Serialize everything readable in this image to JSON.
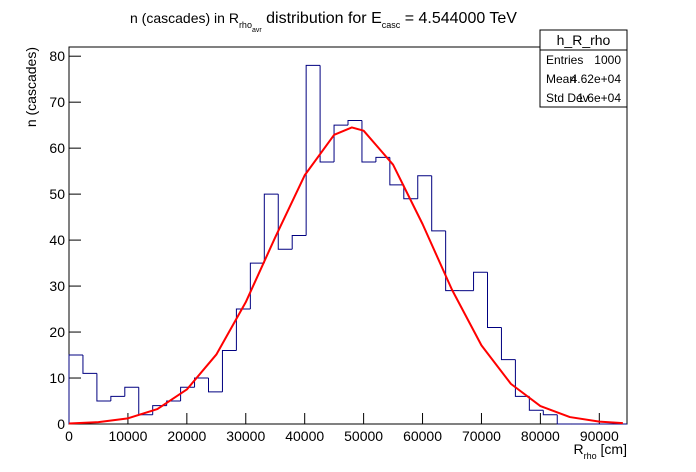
{
  "chart_data": {
    "type": "histogram",
    "title": [
      "n (cascades) in R",
      "rho",
      "avr",
      " distribution for E",
      "casc",
      " = 4.544000 TeV"
    ],
    "x_label": [
      "R",
      "rho",
      " [cm]"
    ],
    "y_label": "n (cascades)",
    "bins": [
      0,
      2367.5,
      4735,
      7102.5,
      9470,
      11837.5,
      14205,
      16572.5,
      18940,
      21307.5,
      23675,
      26042.5,
      28410,
      30777.5,
      33145,
      35512.5,
      37880,
      40247.5,
      42615,
      44982.5,
      47350,
      49717.5,
      52085,
      54452.5,
      56820,
      59187.5,
      61555,
      63922.5,
      66290,
      68657.5,
      71025,
      73392.5,
      75760,
      78127.5,
      80495,
      82862.5,
      85230,
      87597.5,
      89965,
      92332.5,
      94700
    ],
    "values": [
      15,
      11,
      5,
      6,
      8,
      2,
      4,
      5,
      8,
      10,
      7,
      16,
      25,
      35,
      50,
      38,
      41,
      78,
      57,
      65,
      66,
      57,
      58,
      52,
      49,
      54,
      42,
      29,
      29,
      33,
      21,
      14,
      6,
      3,
      2,
      0,
      0,
      0,
      0,
      0
    ],
    "color": "#000080",
    "fit": {
      "color": "#ff0000",
      "x": [
        0,
        5000,
        10000,
        15000,
        20000,
        25000,
        30000,
        35000,
        40000,
        45000,
        48000,
        50000,
        55000,
        60000,
        65000,
        70000,
        75000,
        80000,
        85000,
        90000,
        94000
      ],
      "y": [
        0.12,
        0.4,
        1.23,
        3.25,
        7.51,
        15.1,
        26.5,
        40.6,
        54.1,
        62.9,
        64.5,
        63.8,
        56.4,
        43.5,
        29.2,
        17.1,
        8.73,
        3.9,
        1.51,
        0.51,
        0.19
      ]
    },
    "xlim": [
      0,
      94700
    ],
    "ylim": [
      0,
      82
    ],
    "xticks": [
      0,
      10000,
      20000,
      30000,
      40000,
      50000,
      60000,
      70000,
      80000,
      90000
    ],
    "yticks": [
      0,
      10,
      20,
      30,
      40,
      50,
      60,
      70,
      80
    ],
    "stats": {
      "name": "h_R_rho",
      "rows": [
        [
          "Entries",
          "1000"
        ],
        [
          "Mean",
          "4.62e+04"
        ],
        [
          "Std Dev",
          "1.6e+04"
        ]
      ]
    }
  }
}
